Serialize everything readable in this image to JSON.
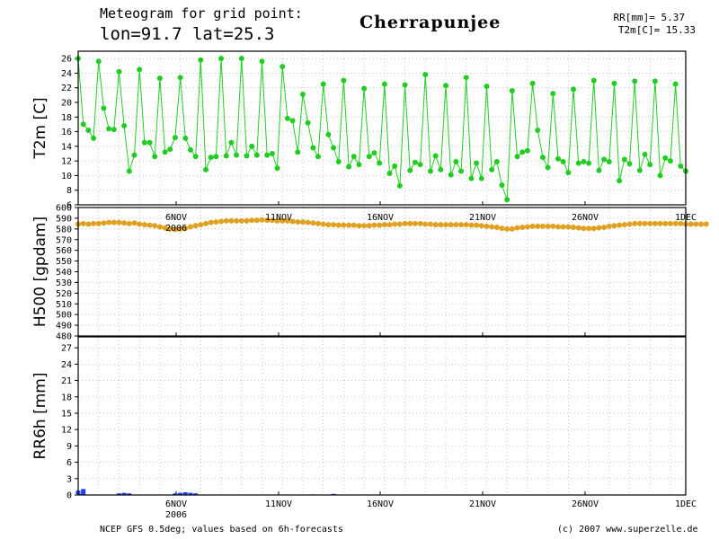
{
  "header": {
    "title_line1": "Meteogram for grid point:",
    "title_line2": "lon=91.7 lat=25.3",
    "location": "Cherrapunjee",
    "rr_summary": "RR[mm]= 5.37",
    "t2m_summary": "T2m[C]= 15.33"
  },
  "footer": {
    "source": "NCEP GFS 0.5deg; values based on 6h-forecasts",
    "copyright": "(c) 2007 www.superzelle.de"
  },
  "colors": {
    "temperature": "#22cc22",
    "geopotential": "#e0a020",
    "precipitation": "#2244ee",
    "grid": "#aaaaaa"
  },
  "chart_data": [
    {
      "type": "line",
      "ylabel": "T2m [C]",
      "ylim": [
        6,
        27
      ],
      "yticks": [
        6,
        8,
        10,
        12,
        14,
        16,
        18,
        20,
        22,
        24,
        26
      ],
      "x_ticks": [
        "6NOV",
        "11NOV",
        "16NOV",
        "21NOV",
        "26NOV",
        "1DEC"
      ],
      "x_sublabel": "2006",
      "grid": true,
      "series": [
        {
          "values": [
            26.0,
            17.0,
            16.2,
            15.1,
            25.6,
            19.2,
            16.4,
            16.3,
            24.2,
            16.8,
            10.6,
            12.8,
            24.5,
            14.5,
            14.5,
            12.6,
            23.3,
            13.2,
            13.6,
            15.2,
            23.4,
            15.1,
            13.5,
            12.6,
            25.8,
            10.8,
            12.5,
            12.6,
            26.0,
            12.7,
            14.5,
            12.8,
            26.0,
            12.7,
            14.0,
            12.8,
            25.6,
            12.8,
            13.0,
            11.0,
            24.9,
            17.8,
            17.5,
            13.2,
            21.1,
            17.2,
            13.8,
            12.6,
            22.5,
            15.6,
            13.8,
            11.9,
            23.0,
            11.2,
            12.6,
            11.5,
            21.9,
            12.6,
            13.1,
            11.7,
            22.5,
            10.3,
            11.3,
            8.6,
            22.4,
            10.7,
            11.8,
            11.5,
            23.8,
            10.6,
            12.7,
            10.8,
            22.3,
            10.1,
            11.9,
            10.6,
            23.4,
            9.6,
            11.7,
            9.6,
            22.2,
            10.8,
            11.9,
            8.7,
            6.7,
            21.6,
            12.6,
            13.2,
            13.4,
            22.6,
            16.2,
            12.5,
            11.1,
            21.2,
            12.3,
            11.9,
            10.4,
            21.8,
            11.7,
            11.9,
            11.7,
            23.0,
            10.7,
            12.2,
            11.9,
            22.6,
            9.3,
            12.2,
            11.6,
            22.9,
            10.7,
            12.9,
            11.5,
            22.9,
            10.0,
            12.4,
            12.0,
            22.5,
            11.3,
            10.6
          ]
        }
      ]
    },
    {
      "type": "line",
      "ylabel": "H500 [gpdam]",
      "ylim": [
        480,
        600
      ],
      "yticks": [
        480,
        490,
        500,
        510,
        520,
        530,
        540,
        550,
        560,
        570,
        580,
        590,
        600
      ],
      "x_ticks": [
        "6NOV",
        "11NOV",
        "16NOV",
        "21NOV",
        "26NOV",
        "1DEC"
      ],
      "x_sublabel": "2006",
      "grid": true,
      "series": [
        {
          "values": [
            584.5,
            585,
            584.5,
            585,
            585,
            585.5,
            586,
            586,
            586,
            585.5,
            585,
            585.5,
            584.5,
            584,
            583.5,
            583,
            582,
            581,
            580,
            579.5,
            580,
            580.5,
            582,
            583,
            584,
            585,
            586,
            586.5,
            587,
            587.5,
            587.5,
            587.5,
            587.5,
            587.5,
            588,
            588,
            588.5,
            588,
            588,
            587.5,
            587.5,
            587.5,
            587,
            586.5,
            586.5,
            586,
            585.5,
            585,
            584.5,
            584,
            584,
            583.5,
            583.5,
            583.5,
            583.5,
            583,
            583,
            583,
            583.5,
            583.5,
            584,
            584,
            584.5,
            584.5,
            585,
            585,
            585,
            585,
            584.5,
            584.5,
            584,
            584,
            584,
            584,
            584,
            584,
            584,
            583.5,
            583.5,
            583,
            582.5,
            582,
            581.5,
            580.5,
            580,
            580,
            581,
            581.5,
            582,
            582.5,
            582.5,
            582.5,
            582.5,
            582.5,
            582,
            582,
            582,
            581.5,
            581,
            580.5,
            580.5,
            580.5,
            581,
            581.5,
            582.5,
            583,
            583.5,
            584,
            584.5,
            585,
            585,
            585,
            585,
            585,
            585,
            585,
            585,
            585,
            585,
            584.5,
            584.5,
            584.5,
            584.5,
            584.5
          ]
        }
      ]
    },
    {
      "type": "bar",
      "ylabel": "RR6h [mm]",
      "ylim": [
        0,
        29
      ],
      "yticks": [
        0,
        3,
        6,
        9,
        12,
        15,
        18,
        21,
        24,
        27
      ],
      "x_ticks": [
        "6NOV",
        "11NOV",
        "16NOV",
        "21NOV",
        "26NOV",
        "1DEC"
      ],
      "x_sublabel": "2006",
      "grid": true,
      "series": [
        {
          "values": [
            0.8,
            1.1,
            0,
            0,
            0,
            0,
            0,
            0,
            0.3,
            0.4,
            0.3,
            0,
            0,
            0,
            0,
            0,
            0,
            0,
            0,
            0.3,
            0.4,
            0.5,
            0.4,
            0.3,
            0,
            0,
            0,
            0,
            0,
            0,
            0,
            0,
            0,
            0,
            0,
            0,
            0,
            0,
            0,
            0,
            0,
            0,
            0,
            0,
            0,
            0,
            0.1,
            0,
            0,
            0,
            0.2,
            0,
            0,
            0,
            0,
            0,
            0,
            0,
            0,
            0,
            0,
            0,
            0,
            0,
            0,
            0,
            0,
            0,
            0,
            0,
            0,
            0,
            0,
            0,
            0,
            0,
            0,
            0,
            0,
            0,
            0,
            0,
            0,
            0,
            0,
            0,
            0,
            0,
            0,
            0,
            0,
            0,
            0,
            0,
            0,
            0,
            0,
            0,
            0,
            0,
            0,
            0,
            0,
            0,
            0,
            0,
            0,
            0,
            0,
            0,
            0,
            0,
            0,
            0,
            0,
            0,
            0,
            0,
            0,
            0,
            0
          ]
        }
      ]
    }
  ]
}
